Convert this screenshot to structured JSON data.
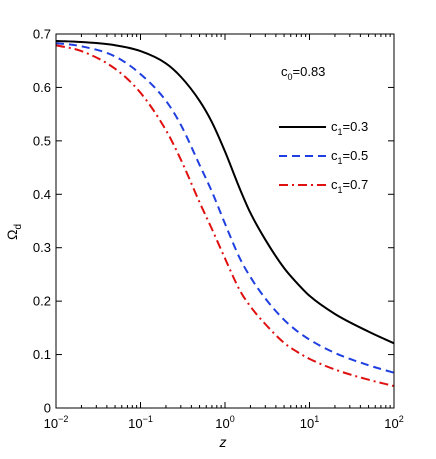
{
  "chart_data": {
    "type": "line",
    "title": "",
    "xlabel": "z",
    "ylabel": "Ω_d",
    "x_scale": "log",
    "xlim": [
      0.01,
      100
    ],
    "ylim": [
      0,
      0.7
    ],
    "x_ticks": [
      {
        "value": 0.01,
        "base": "10",
        "exp": "−2"
      },
      {
        "value": 0.1,
        "base": "10",
        "exp": "−1"
      },
      {
        "value": 1,
        "base": "10",
        "exp": "0"
      },
      {
        "value": 10,
        "base": "10",
        "exp": "1"
      },
      {
        "value": 100,
        "base": "10",
        "exp": "2"
      }
    ],
    "y_ticks": [
      "0",
      "0.1",
      "0.2",
      "0.3",
      "0.4",
      "0.5",
      "0.6",
      "0.7"
    ],
    "grid": false,
    "legend_position": "right",
    "annotation": {
      "text_main": "c",
      "text_sub": "0",
      "text_tail": "=0.83"
    },
    "series": [
      {
        "name": "c1=0.3",
        "label_main": "c",
        "label_sub": "1",
        "label_tail": "=0.3",
        "color": "#000000",
        "dash": "solid",
        "x": [
          0.01,
          0.02,
          0.05,
          0.1,
          0.2,
          0.3,
          0.5,
          0.7,
          1,
          1.5,
          2,
          3,
          5,
          7,
          10,
          20,
          50,
          100
        ],
        "y": [
          0.687,
          0.685,
          0.679,
          0.668,
          0.645,
          0.62,
          0.575,
          0.535,
          0.48,
          0.41,
          0.365,
          0.315,
          0.262,
          0.235,
          0.21,
          0.176,
          0.143,
          0.121
        ]
      },
      {
        "name": "c1=0.5",
        "label_main": "c",
        "label_sub": "1",
        "label_tail": "=0.5",
        "color": "#1f3fe0",
        "dash": "dashed",
        "x": [
          0.01,
          0.02,
          0.05,
          0.1,
          0.2,
          0.3,
          0.5,
          0.7,
          1,
          1.5,
          2,
          3,
          5,
          7,
          10,
          20,
          50,
          100
        ],
        "y": [
          0.683,
          0.677,
          0.658,
          0.625,
          0.575,
          0.53,
          0.455,
          0.405,
          0.345,
          0.28,
          0.245,
          0.205,
          0.165,
          0.145,
          0.128,
          0.103,
          0.08,
          0.066
        ]
      },
      {
        "name": "c1=0.7",
        "label_main": "c",
        "label_sub": "1",
        "label_tail": "=0.7",
        "color": "#e01010",
        "dash": "dashdot",
        "x": [
          0.01,
          0.02,
          0.05,
          0.1,
          0.2,
          0.3,
          0.5,
          0.7,
          1,
          1.5,
          2,
          3,
          5,
          7,
          10,
          20,
          50,
          100
        ],
        "y": [
          0.679,
          0.668,
          0.635,
          0.59,
          0.52,
          0.465,
          0.385,
          0.335,
          0.28,
          0.22,
          0.19,
          0.157,
          0.122,
          0.106,
          0.092,
          0.072,
          0.053,
          0.041
        ]
      }
    ]
  }
}
